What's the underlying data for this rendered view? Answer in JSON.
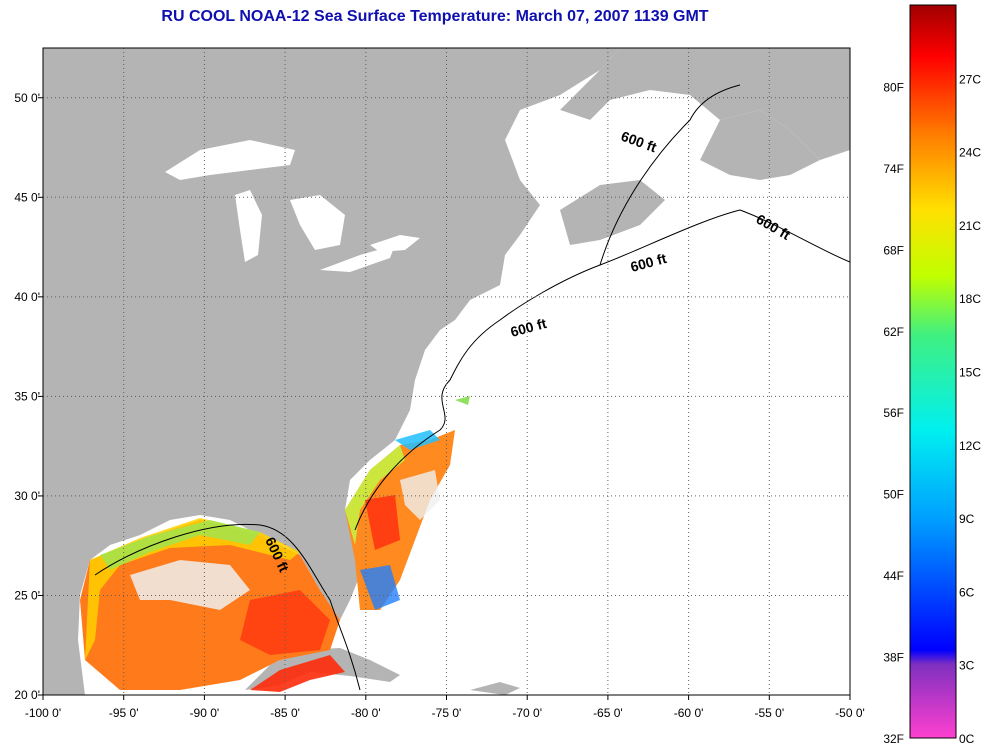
{
  "title": "RU COOL  NOAA-12  Sea Surface Temperature:  March 07, 2007 1139 GMT",
  "map": {
    "lon_range": [
      -100,
      -50
    ],
    "lat_range": [
      20,
      52.5
    ],
    "lon_ticks": [
      "-100 0'",
      "-95 0'",
      "-90 0'",
      "-85 0'",
      "-80 0'",
      "-75 0'",
      "-70 0'",
      "-65 0'",
      "-60 0'",
      "-55 0'",
      "-50 0'"
    ],
    "lat_ticks": [
      "20 0'",
      "25 0'",
      "30 0'",
      "35 0'",
      "40 0'",
      "45 0'",
      "50 0'"
    ],
    "grid": "dotted",
    "land_color": "#b4b4b4",
    "ocean_color": "#ffffff",
    "contour_labels": [
      "600 ft",
      "600 ft",
      "600 ft",
      "600 ft",
      "600 ft"
    ]
  },
  "colorbar": {
    "left_labels": [
      "32F",
      "38F",
      "44F",
      "50F",
      "56F",
      "62F",
      "68F",
      "74F",
      "80F"
    ],
    "right_labels": [
      "0C",
      "3C",
      "6C",
      "9C",
      "12C",
      "15C",
      "18C",
      "21C",
      "24C",
      "27C"
    ],
    "stops": [
      "#ff40d0",
      "#8030c0",
      "#0000ff",
      "#00a0ff",
      "#00f0f0",
      "#40f080",
      "#c0ff00",
      "#ffe000",
      "#ff8000",
      "#ff0000",
      "#a00000"
    ]
  }
}
